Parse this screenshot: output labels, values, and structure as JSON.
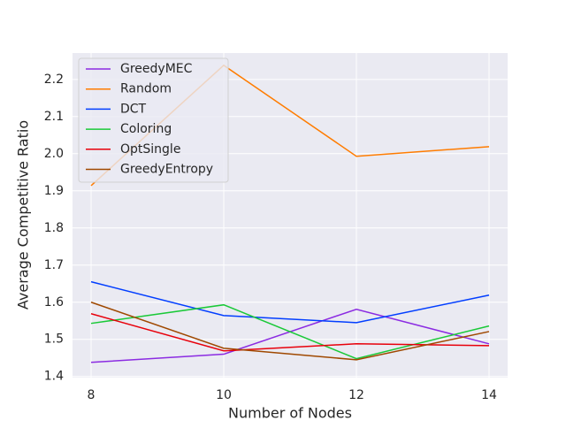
{
  "chart_data": {
    "type": "line",
    "x_label": "Number of Nodes",
    "y_label": "Average Competitive Ratio",
    "x": [
      8,
      10,
      12,
      14
    ],
    "series": [
      {
        "name": "GreedyMEC",
        "color": "#8b2be2",
        "values": [
          1.438,
          1.46,
          1.581,
          1.488
        ]
      },
      {
        "name": "Random",
        "color": "#ff7c00",
        "values": [
          1.914,
          2.238,
          1.993,
          2.019
        ]
      },
      {
        "name": "DCT",
        "color": "#023eff",
        "values": [
          1.655,
          1.564,
          1.545,
          1.619
        ]
      },
      {
        "name": "Coloring",
        "color": "#1ac938",
        "values": [
          1.543,
          1.593,
          1.448,
          1.536
        ]
      },
      {
        "name": "OptSingle",
        "color": "#e8000b",
        "values": [
          1.569,
          1.469,
          1.488,
          1.483
        ]
      },
      {
        "name": "GreedyEntropy",
        "color": "#9f4800",
        "values": [
          1.6,
          1.476,
          1.445,
          1.521
        ]
      }
    ],
    "xlim": [
      7.72,
      14.28
    ],
    "xticks": [
      8,
      10,
      12,
      14
    ],
    "ylim": [
      1.397,
      2.271
    ],
    "yticks": [
      1.4,
      1.5,
      1.6,
      1.7,
      1.8,
      1.9,
      {
        "value": 2,
        "label": "2.0"
      },
      2.1,
      2.2
    ],
    "grid": true,
    "legend": "upper-left"
  }
}
